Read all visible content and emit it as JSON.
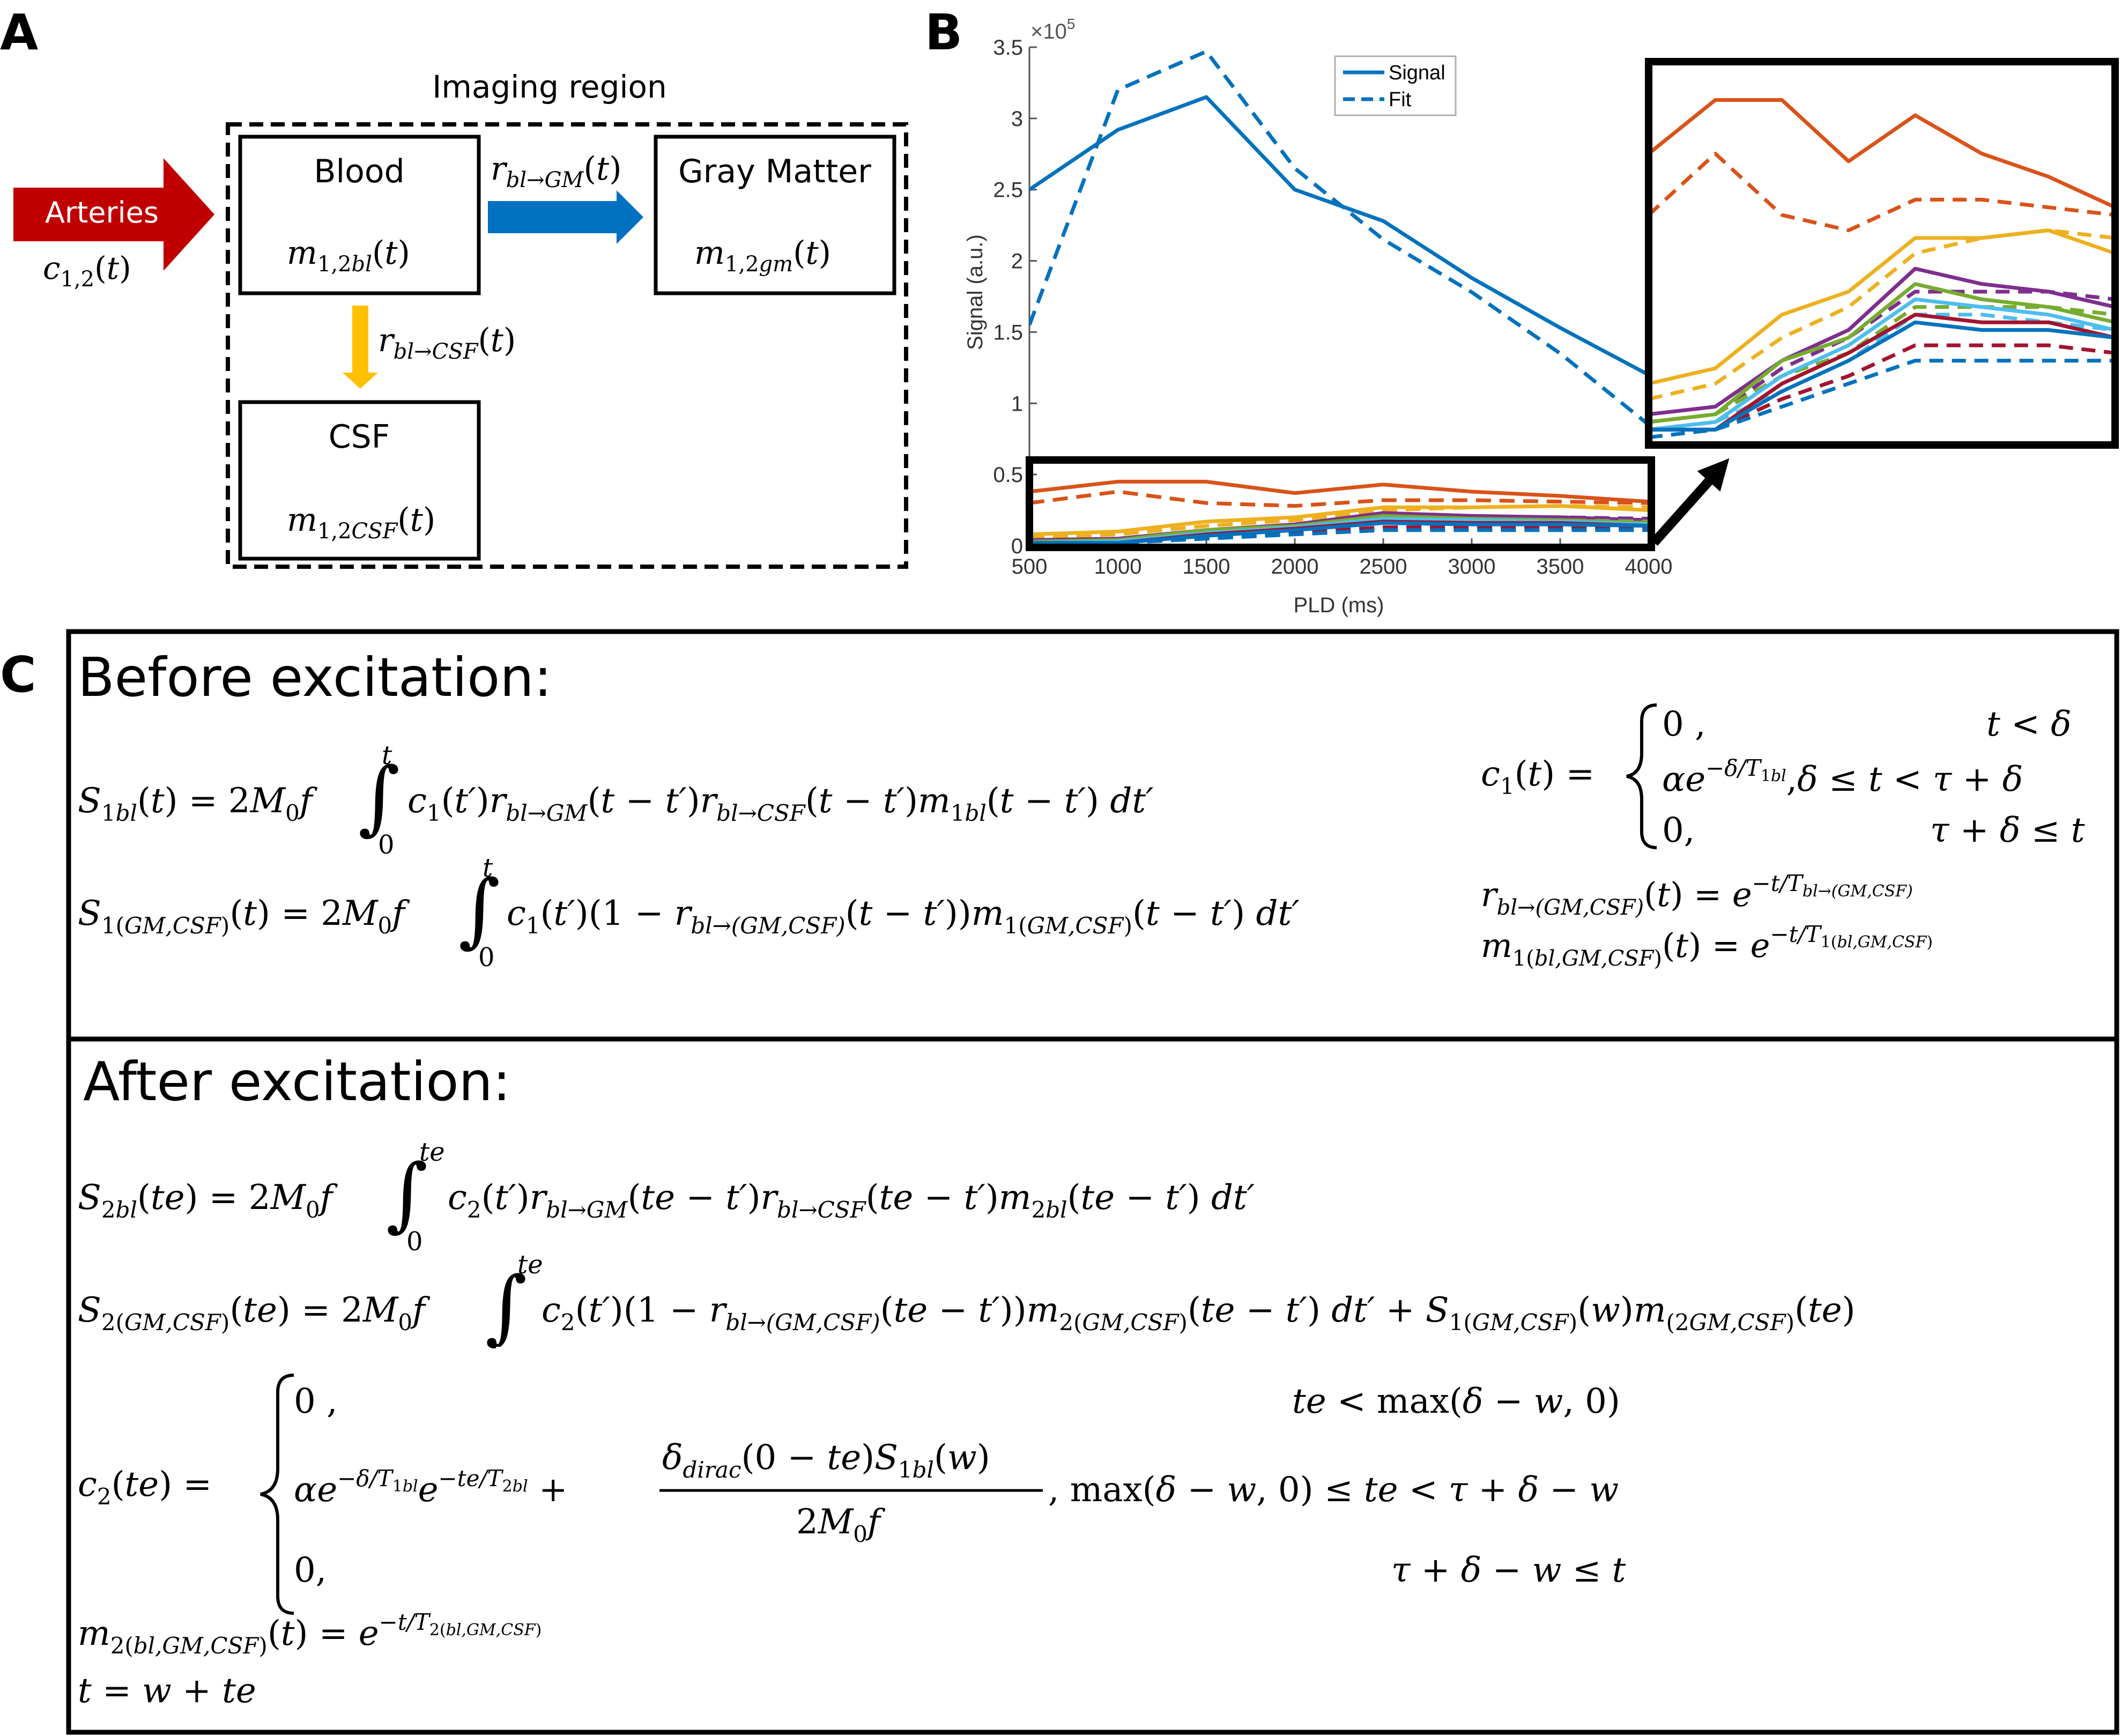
{
  "panel_labels": {
    "a": "A",
    "b": "B",
    "c": "C"
  },
  "panel_a": {
    "region_label": "Imaging region",
    "arteries_label": "Arteries",
    "arteries_sub": "c1,2(t)",
    "blood": {
      "title": "Blood",
      "sub": "m1,2bl(t)"
    },
    "gray_matter": {
      "title": "Gray Matter",
      "sub": "m1,2gm(t)"
    },
    "csf": {
      "title": "CSF",
      "sub": "m1,2CSF(t)"
    },
    "arrow_gm": "rbl→GM(t)",
    "arrow_csf": "rbl→CSF(t)",
    "colors": {
      "arteries": "#c00000",
      "blood_to_gm": "#0070c0",
      "blood_to_csf": "#ffc000"
    }
  },
  "chart_data": {
    "type": "line",
    "ylabel": "Signal (a.u.)",
    "xlabel": "PLD (ms)",
    "y_exponent": "×10",
    "y_exponent_power": "5",
    "x": [
      500,
      1000,
      1500,
      2000,
      2500,
      3000,
      3500,
      4000
    ],
    "xlim": [
      500,
      4000
    ],
    "ylim": [
      0,
      3.5
    ],
    "xticks": [
      "500",
      "1000",
      "1500",
      "2000",
      "2500",
      "3000",
      "3500",
      "4000"
    ],
    "yticks": [
      "0",
      "0.5",
      "1",
      "1.5",
      "2",
      "2.5",
      "3",
      "3.5"
    ],
    "legend": {
      "placement": "top-center",
      "entries": [
        "Signal",
        "Fit"
      ]
    },
    "series": [
      {
        "name": "Signal",
        "style": "solid",
        "color": "#0072bd",
        "values": [
          2.5,
          2.92,
          3.15,
          2.5,
          2.28,
          1.88,
          1.53,
          1.2
        ]
      },
      {
        "name": "Fit",
        "style": "dashed",
        "color": "#0072bd",
        "values": [
          1.55,
          3.2,
          3.47,
          2.65,
          2.15,
          1.78,
          1.35,
          0.85
        ]
      },
      {
        "style": "solid",
        "color": "#d95319",
        "values": [
          0.38,
          0.45,
          0.45,
          0.37,
          0.43,
          0.38,
          0.35,
          0.31
        ]
      },
      {
        "style": "dashed",
        "color": "#d95319",
        "values": [
          0.3,
          0.38,
          0.3,
          0.28,
          0.32,
          0.32,
          0.31,
          0.3
        ]
      },
      {
        "style": "solid",
        "color": "#edb120",
        "values": [
          0.08,
          0.1,
          0.17,
          0.2,
          0.27,
          0.27,
          0.28,
          0.25
        ]
      },
      {
        "style": "dashed",
        "color": "#edb120",
        "values": [
          0.06,
          0.08,
          0.14,
          0.18,
          0.25,
          0.27,
          0.28,
          0.27
        ]
      },
      {
        "style": "solid",
        "color": "#7e2f8e",
        "values": [
          0.04,
          0.05,
          0.11,
          0.15,
          0.23,
          0.21,
          0.2,
          0.18
        ]
      },
      {
        "style": "dashed",
        "color": "#7e2f8e",
        "values": [
          0.03,
          0.04,
          0.1,
          0.14,
          0.2,
          0.2,
          0.2,
          0.19
        ]
      },
      {
        "style": "solid",
        "color": "#77ac30",
        "values": [
          0.03,
          0.04,
          0.11,
          0.14,
          0.21,
          0.19,
          0.18,
          0.16
        ]
      },
      {
        "style": "dashed",
        "color": "#77ac30",
        "values": [
          0.03,
          0.04,
          0.09,
          0.12,
          0.18,
          0.18,
          0.18,
          0.17
        ]
      },
      {
        "style": "solid",
        "color": "#4dbeee",
        "values": [
          0.02,
          0.03,
          0.09,
          0.13,
          0.19,
          0.18,
          0.17,
          0.15
        ]
      },
      {
        "style": "dashed",
        "color": "#4dbeee",
        "values": [
          0.02,
          0.03,
          0.07,
          0.11,
          0.17,
          0.17,
          0.16,
          0.15
        ]
      },
      {
        "style": "solid",
        "color": "#a2142f",
        "values": [
          0.02,
          0.02,
          0.08,
          0.12,
          0.17,
          0.16,
          0.16,
          0.14
        ]
      },
      {
        "style": "dashed",
        "color": "#a2142f",
        "values": [
          0.02,
          0.02,
          0.06,
          0.09,
          0.13,
          0.13,
          0.13,
          0.12
        ]
      },
      {
        "style": "solid",
        "color": "#0072bd",
        "values": [
          0.02,
          0.02,
          0.07,
          0.11,
          0.16,
          0.15,
          0.15,
          0.14
        ]
      },
      {
        "style": "dashed",
        "color": "#0072bd",
        "values": [
          0.01,
          0.02,
          0.05,
          0.08,
          0.11,
          0.11,
          0.11,
          0.11
        ]
      }
    ]
  },
  "inset": {
    "ylim": [
      0,
      0.5
    ]
  },
  "panel_c": {
    "before": {
      "heading": "Before excitation:",
      "equations": [
        "S1bl(t) = 2M0f ∫0^t c1(t′)rbl→GM(t − t′)rbl→CSF(t − t′)m1bl(t − t′) dt′",
        "S1(GM,CSF)(t) = 2M0f ∫0^t c1(t′)(1 − rbl→(GM,CSF)(t − t′))m1(GM,CSF)(t − t′) dt′"
      ],
      "c1_lhs": "c1(t) =",
      "c1_cases": [
        {
          "expr": "0 ,",
          "cond": "t < δ"
        },
        {
          "expr": "αe^(−δ/T1bl),",
          "cond": "δ ≤ t < τ + δ"
        },
        {
          "expr": "0,",
          "cond": "τ + δ ≤ t"
        }
      ],
      "side_defs": [
        "rbl→(GM,CSF)(t) = e^(−t/Tbl→(GM,CSF))",
        "m1(bl,GM,CSF)(t) = e^(−t/T1(bl,GM,CSF))"
      ]
    },
    "after": {
      "heading": "After excitation:",
      "equations": [
        "S2bl(te) = 2M0f ∫0^te c2(t′)rbl→GM(te − t′)rbl→CSF(te − t′)m2bl(te − t′) dt′",
        "S2(GM,CSF)(te) = 2M0f ∫0^te c2(t′)(1 − rbl→(GM,CSF)(te − t′))m2(GM,CSF)(te − t′) dt′ + S1(GM,CSF)(w)m(2GM,CSF)(te)"
      ],
      "c2_lhs": "c2(te) =",
      "c2_cases": [
        {
          "expr": "0 ,",
          "cond": "te < max(δ − w, 0)"
        },
        {
          "expr": "αe^(−δ/T1bl)e^(−te/T2bl) + δdirac(0 − te)S1bl(w) / 2M0f ,",
          "cond": "max(δ − w, 0) ≤ te < τ + δ − w"
        },
        {
          "expr": "0,",
          "cond": "τ + δ − w ≤ t"
        }
      ],
      "m2_def": "m2(bl,GM,CSF)(t) = e^(−t/T2(bl,GM,CSF))",
      "t_def": "t = w + te"
    }
  }
}
